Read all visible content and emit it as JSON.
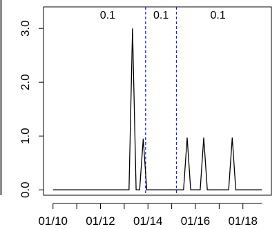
{
  "chart_data": {
    "type": "line",
    "title": "",
    "xlabel": "",
    "ylabel": "",
    "x_tick_labels": [
      "01/10",
      "01/12",
      "01/14",
      "01/16",
      "01/18"
    ],
    "x_tick_positions": [
      10,
      12,
      14,
      16,
      18
    ],
    "y_tick_labels": [
      "0.0",
      "1.0",
      "2.0",
      "3.0"
    ],
    "y_tick_values": [
      0,
      1,
      2,
      3
    ],
    "xlim": [
      9.6,
      19.2
    ],
    "ylim": [
      -0.1,
      3.4
    ],
    "grid": false,
    "series": [
      {
        "color": "#000000",
        "x": [
          10.0,
          13.2,
          13.35,
          13.5,
          13.65,
          13.8,
          13.95,
          15.5,
          15.65,
          15.8,
          16.2,
          16.35,
          16.5,
          17.4,
          17.55,
          17.7,
          18.8
        ],
        "y": [
          0,
          0,
          3.0,
          0,
          0,
          0.95,
          0,
          0,
          0.97,
          0,
          0,
          0.97,
          0,
          0,
          0.97,
          0,
          0
        ]
      }
    ],
    "vlines": [
      {
        "x": 13.9,
        "color": "#2222dd",
        "style": "dashed"
      },
      {
        "x": 15.2,
        "color": "#2222dd",
        "style": "dashed"
      }
    ],
    "segment_labels": [
      {
        "text": "0.1",
        "x": 12.3
      },
      {
        "text": "0.1",
        "x": 14.55
      },
      {
        "text": "0.1",
        "x": 16.95
      }
    ]
  }
}
